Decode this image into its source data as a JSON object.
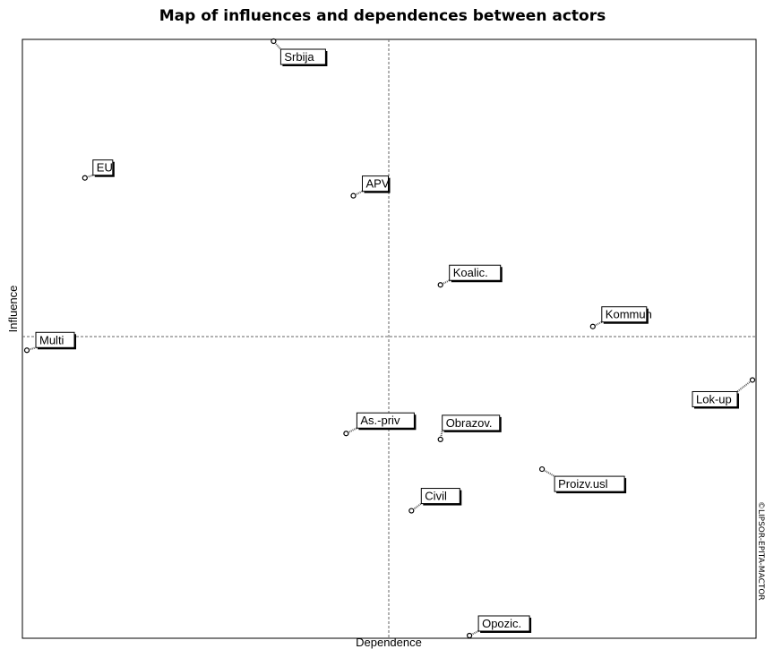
{
  "chart_data": {
    "type": "scatter",
    "title": "Map of influences and dependences between actors",
    "xlabel": "Dependence",
    "ylabel": "Influence",
    "credit": "©LIPSOR-EPITA-MACTOR",
    "grid": false,
    "points": [
      {
        "label": "Srbija",
        "dependence": 0.34,
        "influence": 1.0
      },
      {
        "label": "EU",
        "dependence": 0.08,
        "influence": 0.77
      },
      {
        "label": "APV",
        "dependence": 0.45,
        "influence": 0.74
      },
      {
        "label": "Koalic.",
        "dependence": 0.57,
        "influence": 0.59
      },
      {
        "label": "Kommun",
        "dependence": 0.78,
        "influence": 0.52
      },
      {
        "label": "Multi",
        "dependence": 0.0,
        "influence": 0.48
      },
      {
        "label": "Lok-up",
        "dependence": 1.0,
        "influence": 0.43
      },
      {
        "label": "As.-priv",
        "dependence": 0.44,
        "influence": 0.34
      },
      {
        "label": "Obrazov.",
        "dependence": 0.57,
        "influence": 0.33
      },
      {
        "label": "Proizv.usl",
        "dependence": 0.71,
        "influence": 0.28
      },
      {
        "label": "Civil",
        "dependence": 0.53,
        "influence": 0.21
      },
      {
        "label": "Opozic.",
        "dependence": 0.61,
        "influence": 0.0
      }
    ]
  }
}
